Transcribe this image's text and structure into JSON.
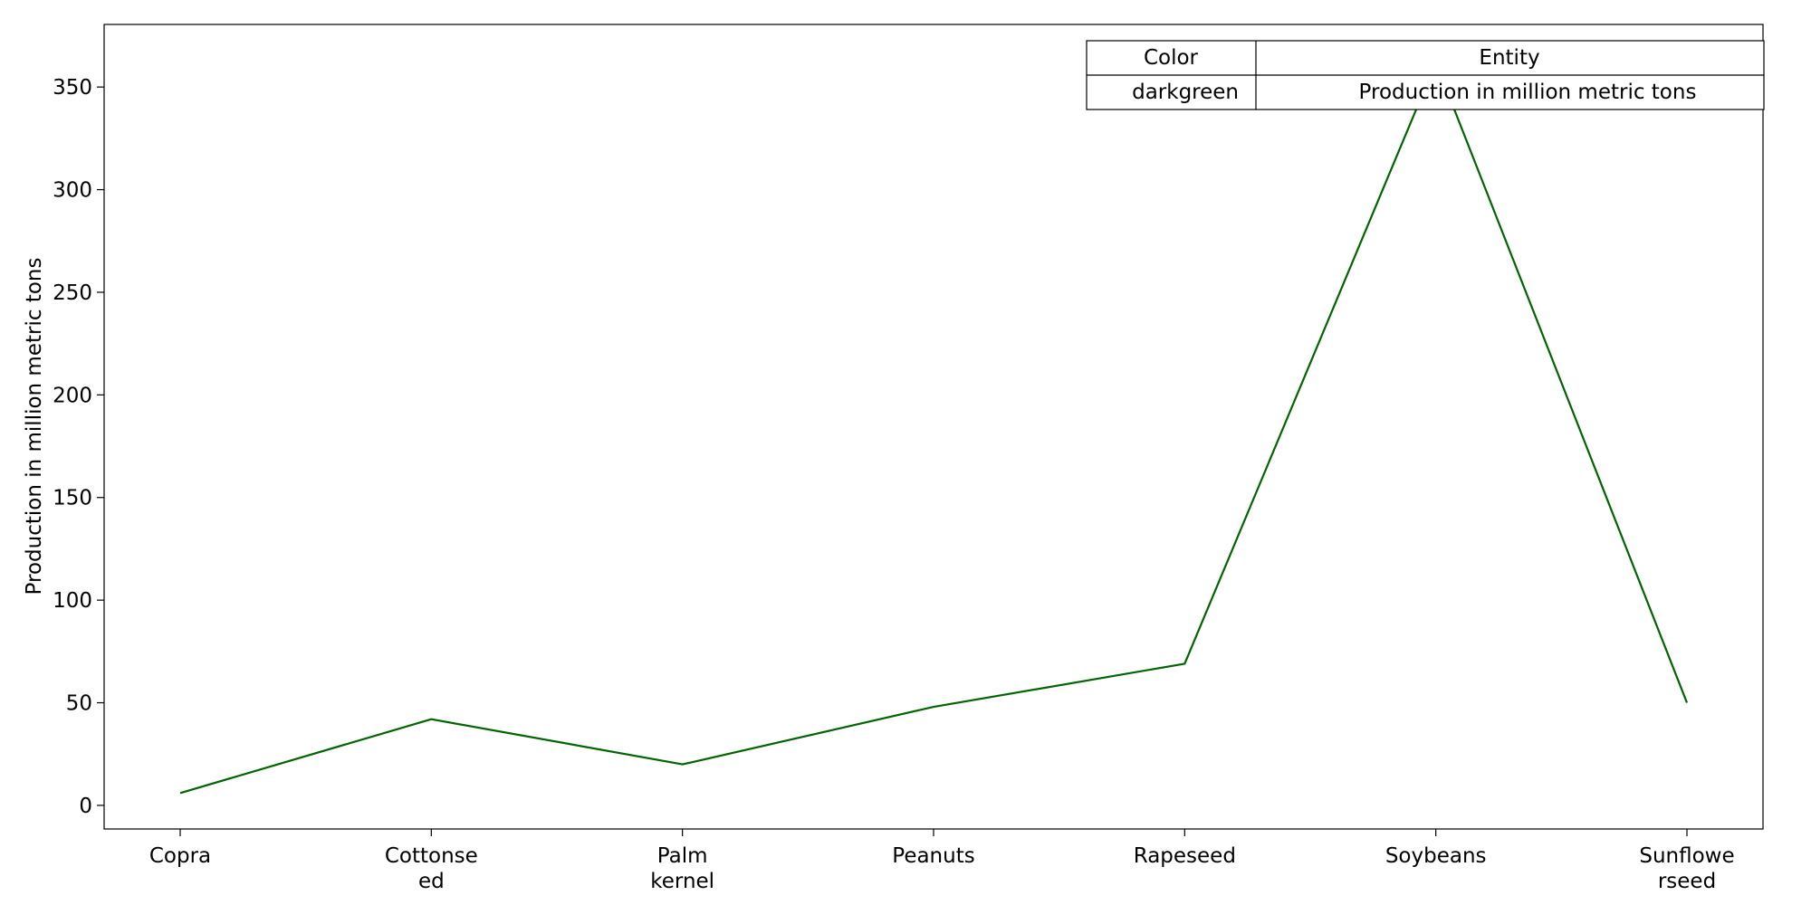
{
  "chart_data": {
    "type": "line",
    "categories": [
      "Copra",
      "Cottonseed",
      "Palm kernel",
      "Peanuts",
      "Rapeseed",
      "Soybeans",
      "Sunflowerseed"
    ],
    "category_labels": [
      [
        "Copra"
      ],
      [
        "Cottonse",
        "ed"
      ],
      [
        "Palm",
        "kernel"
      ],
      [
        "Peanuts"
      ],
      [
        "Rapeseed"
      ],
      [
        "Soybeans"
      ],
      [
        "Sunflowe",
        "rseed"
      ]
    ],
    "series": [
      {
        "name": "Production in million metric tons",
        "color": "#006400",
        "values": [
          6,
          42,
          20,
          48,
          69,
          362,
          50
        ]
      }
    ],
    "title": "",
    "xlabel": "",
    "ylabel": "Production in million metric tons",
    "ylim": [
      -11.5,
      380.5
    ],
    "yticks": [
      0,
      50,
      100,
      150,
      200,
      250,
      300,
      350
    ],
    "grid": false,
    "legend_placement": "top-right",
    "legend_table": {
      "headers": [
        "Color",
        "Entity"
      ],
      "rows": [
        [
          "darkgreen",
          "Production in million metric tons"
        ]
      ]
    }
  }
}
